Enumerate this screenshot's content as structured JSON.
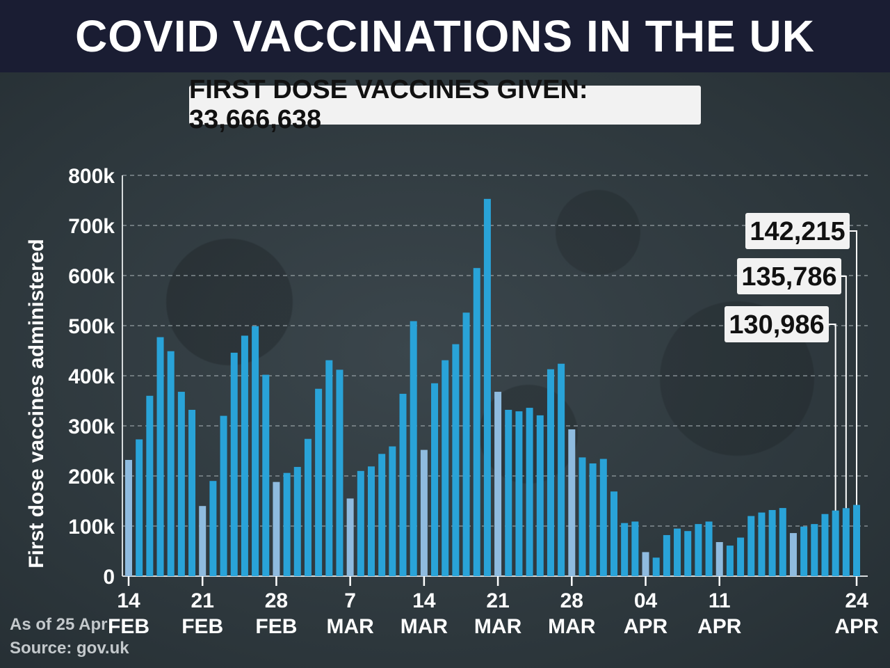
{
  "header": {
    "title": "COVID VACCINATIONS IN THE UK"
  },
  "summary": {
    "text": "FIRST DOSE VACCINES GIVEN: 33,666,638"
  },
  "footer": {
    "as_of": "As of 25 Apr",
    "source": "Source: gov.uk"
  },
  "colors": {
    "weekday_bar": "#29a3d8",
    "sunday_bar": "#8fbbdf",
    "grid": "#9aa3a8",
    "title_bg": "#1a1d33"
  },
  "chart_data": {
    "type": "bar",
    "ylabel": "First dose vaccines administered",
    "ylim": [
      0,
      800000
    ],
    "yticks": [
      {
        "value": 0,
        "label": "0"
      },
      {
        "value": 100000,
        "label": "100k"
      },
      {
        "value": 200000,
        "label": "200k"
      },
      {
        "value": 300000,
        "label": "300k"
      },
      {
        "value": 400000,
        "label": "400k"
      },
      {
        "value": 500000,
        "label": "500k"
      },
      {
        "value": 600000,
        "label": "600k"
      },
      {
        "value": 700000,
        "label": "700k"
      },
      {
        "value": 800000,
        "label": "800k"
      }
    ],
    "grid": true,
    "x_ticks": [
      {
        "index": 0,
        "day": "14",
        "month": "FEB"
      },
      {
        "index": 7,
        "day": "21",
        "month": "FEB"
      },
      {
        "index": 14,
        "day": "28",
        "month": "FEB"
      },
      {
        "index": 21,
        "day": "7",
        "month": "MAR"
      },
      {
        "index": 28,
        "day": "14",
        "month": "MAR"
      },
      {
        "index": 35,
        "day": "21",
        "month": "MAR"
      },
      {
        "index": 42,
        "day": "28",
        "month": "MAR"
      },
      {
        "index": 49,
        "day": "04",
        "month": "APR"
      },
      {
        "index": 56,
        "day": "11",
        "month": "APR"
      },
      {
        "index": 69,
        "day": "24",
        "month": "APR"
      }
    ],
    "values": [
      232000,
      273000,
      360000,
      477000,
      449000,
      368000,
      332000,
      140000,
      190000,
      320000,
      446000,
      480000,
      499000,
      402000,
      188000,
      206000,
      218000,
      274000,
      374000,
      431000,
      412000,
      155000,
      210000,
      219000,
      244000,
      259000,
      364000,
      509000,
      252000,
      385000,
      431000,
      463000,
      526000,
      615000,
      753000,
      368000,
      332000,
      329000,
      336000,
      321000,
      413000,
      424000,
      293000,
      237000,
      225000,
      234000,
      169000,
      106000,
      109000,
      48000,
      37000,
      82000,
      95000,
      90000,
      104000,
      109000,
      68000,
      61000,
      77000,
      120000,
      127000,
      132000,
      136000,
      86000,
      99000,
      104000,
      124000,
      130986,
      135786,
      142215
    ],
    "sunday_indices": [
      0,
      7,
      14,
      21,
      28,
      35,
      42,
      49,
      56,
      63
    ],
    "annotations": [
      {
        "index": 67,
        "label": "130,986"
      },
      {
        "index": 68,
        "label": "135,786"
      },
      {
        "index": 69,
        "label": "142,215"
      }
    ]
  }
}
